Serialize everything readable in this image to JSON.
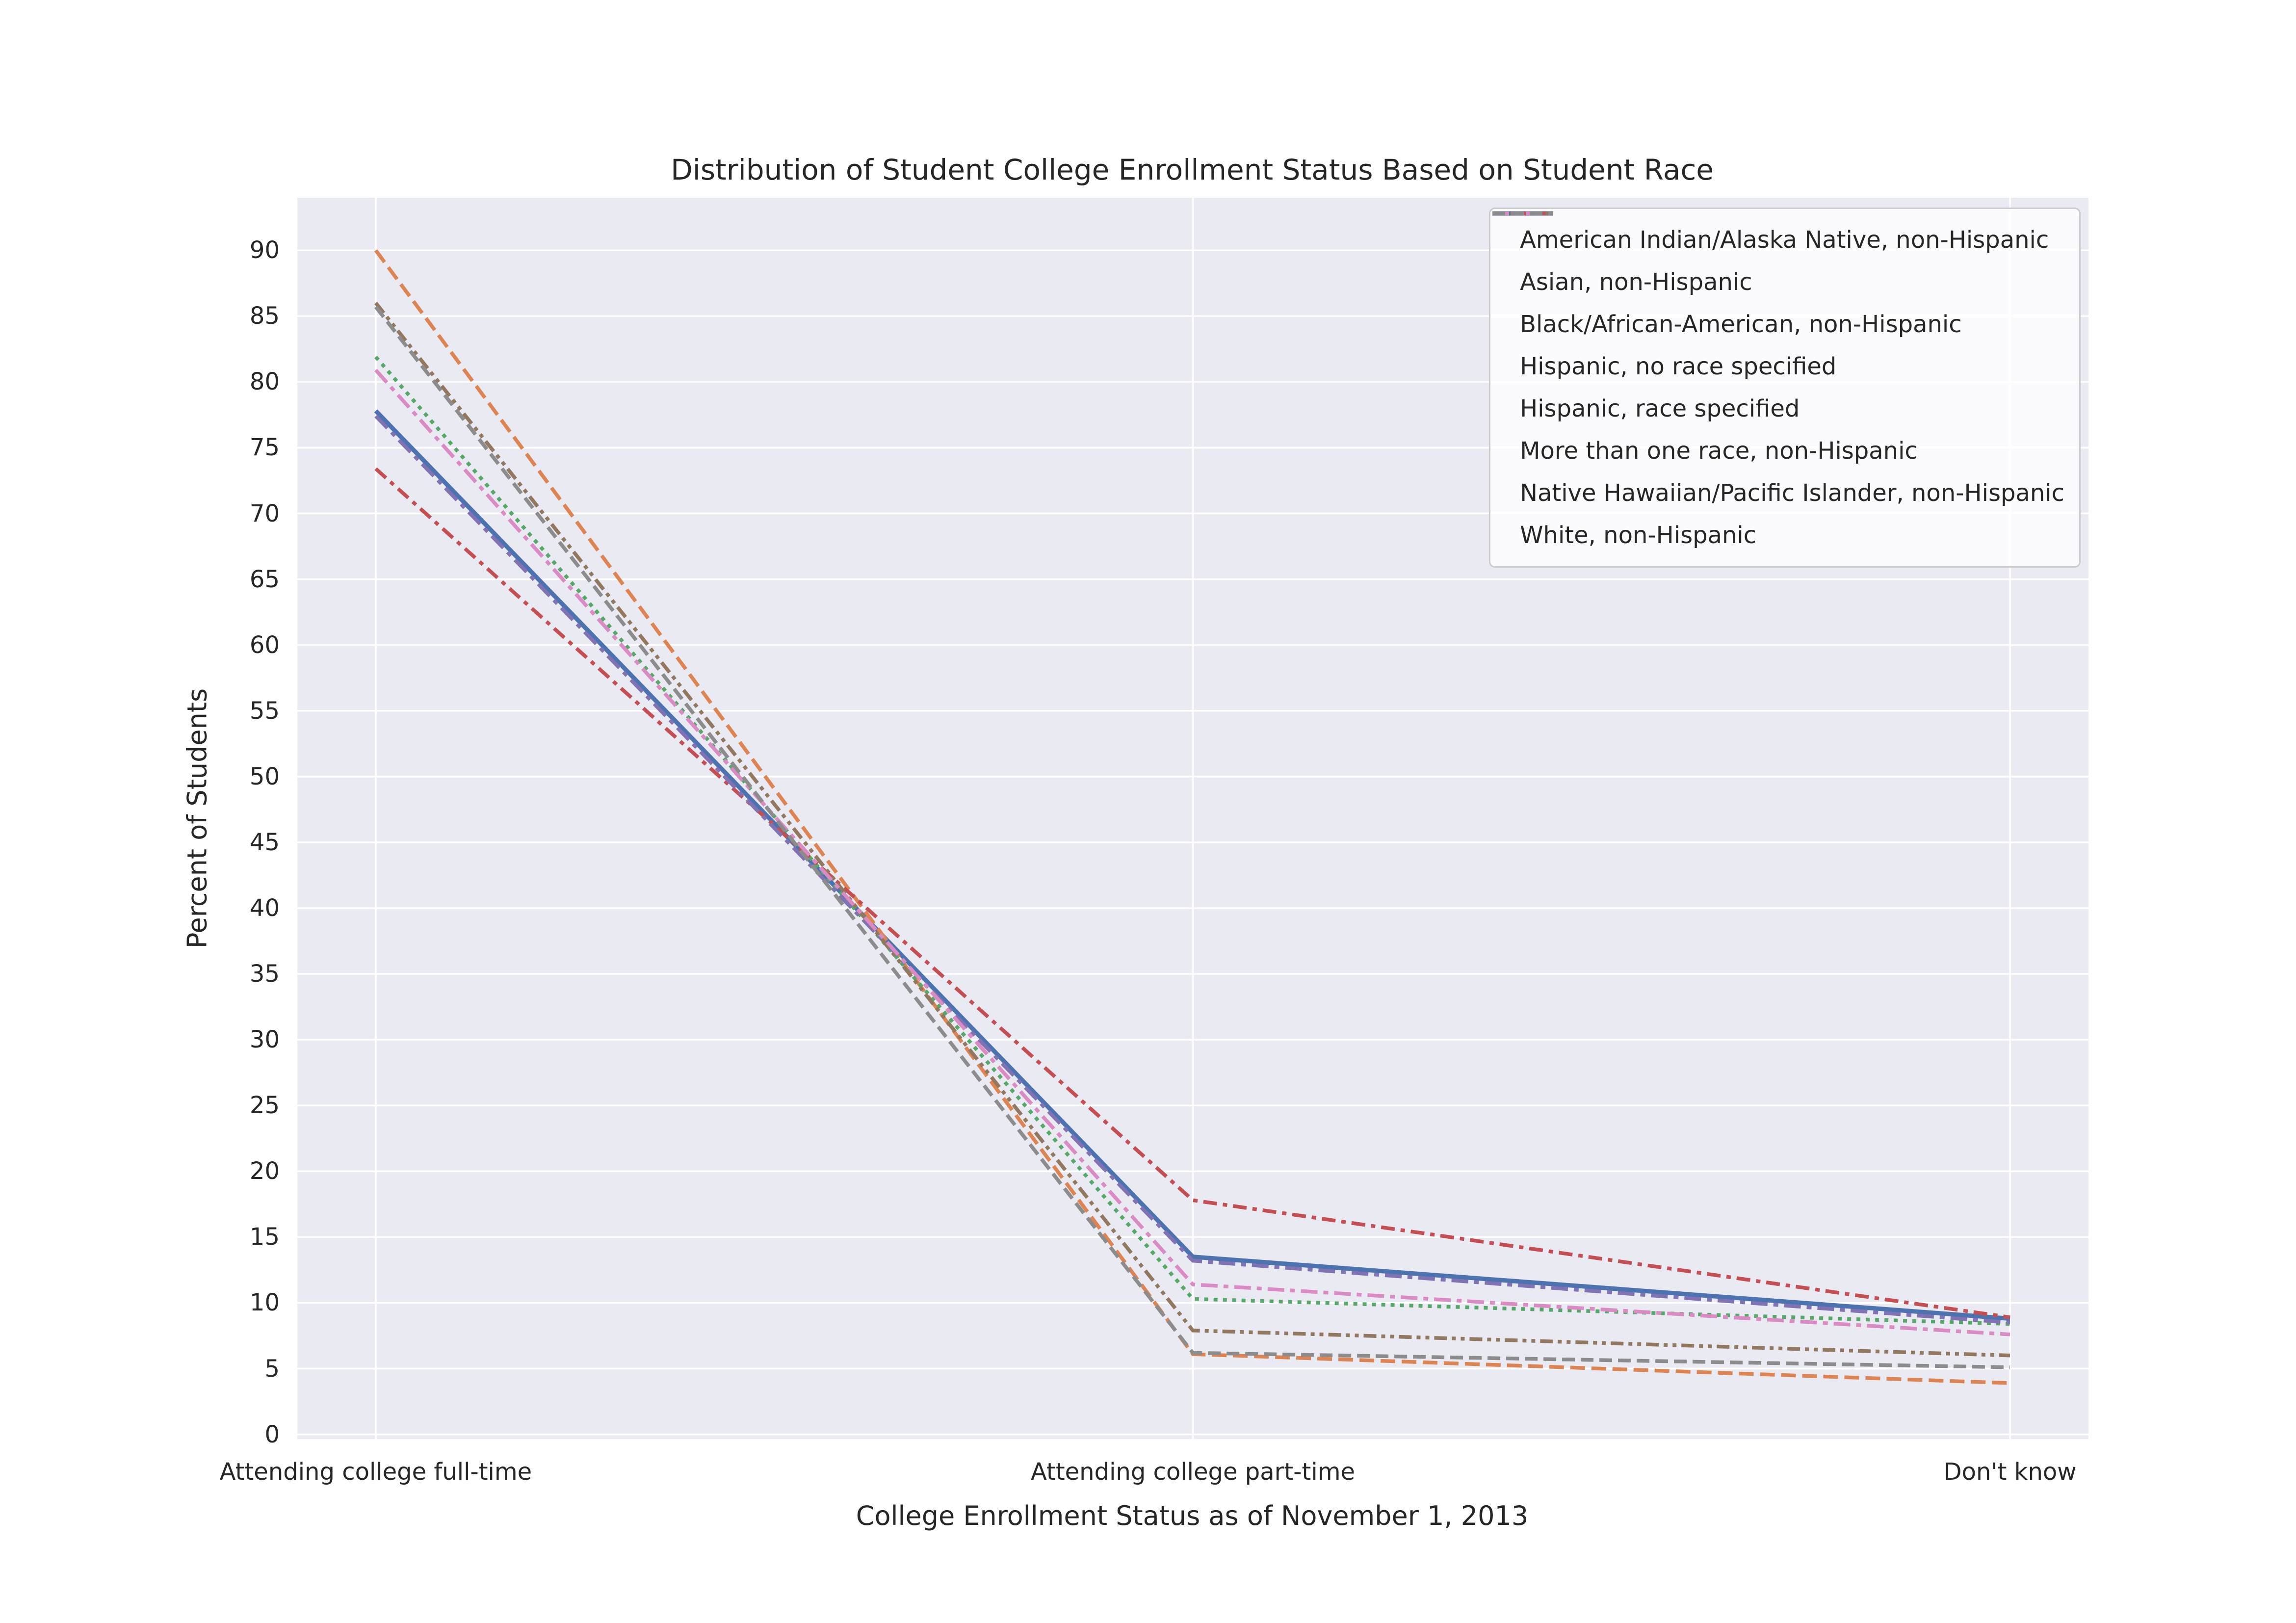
{
  "chart_data": {
    "type": "line",
    "title": "Distribution of Student College Enrollment Status Based on Student Race",
    "xlabel": "College Enrollment Status as of November 1, 2013",
    "ylabel": "Percent of Students",
    "categories": [
      "Attending college full-time",
      "Attending college part-time",
      "Don't know"
    ],
    "yticks": [
      0,
      5,
      10,
      15,
      20,
      25,
      30,
      35,
      40,
      45,
      50,
      55,
      60,
      65,
      70,
      75,
      80,
      85,
      90
    ],
    "ylim": [
      -0.35,
      94
    ],
    "x_pad": 0.0438,
    "grid": true,
    "legend_position": "upper right",
    "plot_bg": "#eaeaf2",
    "grid_color": "#ffffff",
    "text_color": "#262626",
    "series": [
      {
        "name": "American Indian/Alaska Native, non-Hispanic",
        "color": "#4c72b0",
        "dash": "",
        "width": 9,
        "values": [
          77.8,
          13.5,
          8.8
        ]
      },
      {
        "name": "Asian, non-Hispanic",
        "color": "#dd8452",
        "dash": "30 13",
        "width": 7.5,
        "values": [
          90.0,
          6.1,
          3.9
        ]
      },
      {
        "name": "Black/African-American, non-Hispanic",
        "color": "#55a868",
        "dash": "8 11",
        "width": 7.5,
        "values": [
          81.9,
          10.3,
          8.4
        ]
      },
      {
        "name": "Hispanic, no race specified",
        "color": "#c44e52",
        "dash": "28 12 9 12",
        "width": 7.5,
        "values": [
          73.4,
          17.8,
          8.9
        ]
      },
      {
        "name": "Hispanic, race specified",
        "color": "#8172b3",
        "dash": "34 12 10 12",
        "width": 7.5,
        "values": [
          77.4,
          13.2,
          8.5
        ]
      },
      {
        "name": "More than one race, non-Hispanic",
        "color": "#937860",
        "dash": "26 10 8 10 8 10",
        "width": 7.5,
        "values": [
          86.0,
          7.9,
          6.0
        ]
      },
      {
        "name": "Native Hawaiian/Pacific Islander, non-Hispanic",
        "color": "#da8bc3",
        "dash": "34 12 10 12",
        "width": 7.5,
        "values": [
          80.9,
          11.4,
          7.6
        ]
      },
      {
        "name": "White, non-Hispanic",
        "color": "#8c8c8c",
        "dash": "26 12",
        "width": 7.5,
        "values": [
          85.7,
          6.2,
          5.1
        ]
      }
    ]
  }
}
